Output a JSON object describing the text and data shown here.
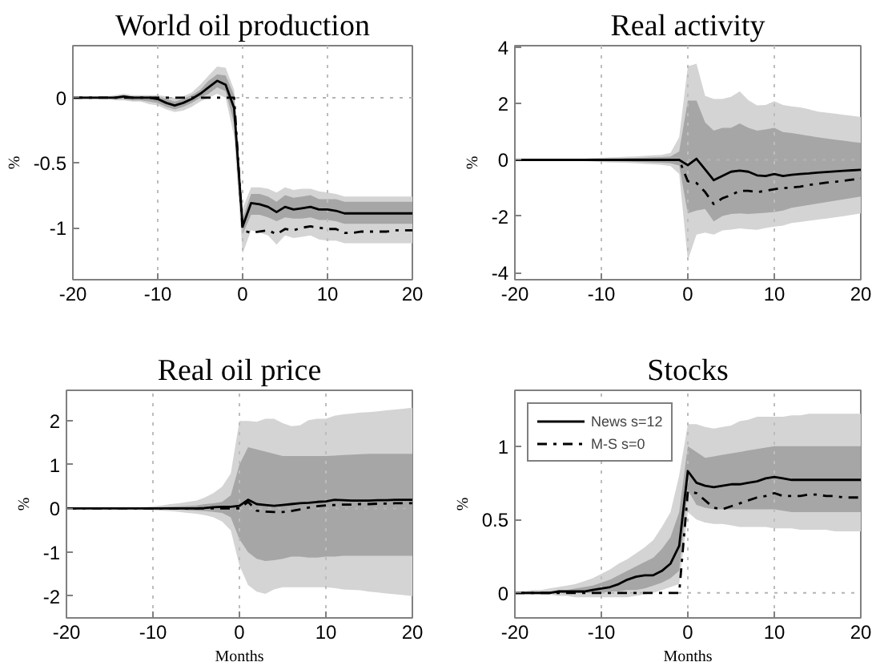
{
  "chart_data": [
    {
      "type": "line",
      "title": "World oil production",
      "ylabel": "%",
      "x": [
        -20,
        -19,
        -18,
        -17,
        -16,
        -15,
        -14,
        -13,
        -12,
        -11,
        -10,
        -9,
        -8,
        -7,
        -6,
        -5,
        -4,
        -3,
        -2,
        -1,
        0,
        1,
        2,
        3,
        4,
        5,
        6,
        7,
        8,
        9,
        10,
        11,
        12,
        13,
        14,
        15,
        16,
        17,
        18,
        19,
        20
      ],
      "xlim": [
        -20,
        20
      ],
      "ylim": [
        -1.4,
        0.4
      ],
      "xticks": [
        -20,
        -10,
        0,
        10,
        20
      ],
      "yticks": [
        -1,
        -0.5,
        0
      ],
      "grid": "x",
      "ref_lines": [
        {
          "axis": "y",
          "value": 0,
          "color": "#b4b4b4",
          "line_style": "dotted"
        }
      ],
      "series": [
        {
          "type": "area",
          "color": "#d4d4d4",
          "values": [
            null,
            null,
            null,
            null,
            null,
            null,
            null,
            null,
            null,
            null,
            null,
            null,
            null,
            null,
            null,
            null,
            null,
            null,
            null,
            null,
            null,
            null,
            null,
            null,
            null,
            null,
            null,
            null,
            null,
            null,
            null,
            null,
            null,
            null,
            null,
            null,
            null,
            null,
            null,
            null,
            null
          ],
          "lower": [
            -0.01,
            -0.01,
            -0.01,
            -0.01,
            -0.01,
            -0.02,
            -0.02,
            -0.03,
            -0.03,
            -0.05,
            -0.06,
            -0.09,
            -0.11,
            -0.1,
            -0.07,
            -0.03,
            0,
            0.03,
            0,
            -0.3,
            -1.2,
            -1.02,
            -1.04,
            -1.06,
            -1.13,
            -1.06,
            -1.08,
            -1.07,
            -1.06,
            -1.09,
            -1.1,
            -1.1,
            -1.12,
            -1.12,
            -1.12,
            -1.12,
            -1.12,
            -1.12,
            -1.12,
            -1.12,
            -1.12
          ],
          "upper": [
            0.01,
            0.01,
            0.01,
            0.01,
            0.01,
            0.02,
            0.03,
            0.02,
            0.02,
            0.02,
            0.02,
            0.01,
            0,
            0.01,
            0.04,
            0.1,
            0.17,
            0.24,
            0.23,
            0.06,
            -0.85,
            -0.69,
            -0.69,
            -0.7,
            -0.73,
            -0.69,
            -0.71,
            -0.7,
            -0.7,
            -0.72,
            -0.73,
            -0.74,
            -0.76,
            -0.76,
            -0.76,
            -0.76,
            -0.76,
            -0.76,
            -0.76,
            -0.76,
            -0.76
          ]
        },
        {
          "type": "area",
          "color": "#a6a6a6",
          "values": [
            null,
            null,
            null,
            null,
            null,
            null,
            null,
            null,
            null,
            null,
            null,
            null,
            null,
            null,
            null,
            null,
            null,
            null,
            null,
            null,
            null,
            null,
            null,
            null,
            null,
            null,
            null,
            null,
            null,
            null,
            null,
            null,
            null,
            null,
            null,
            null,
            null,
            null,
            null,
            null,
            null
          ],
          "lower": [
            0,
            0,
            0,
            0,
            0,
            -0.01,
            -0.01,
            -0.02,
            -0.02,
            -0.03,
            -0.04,
            -0.07,
            -0.09,
            -0.07,
            -0.04,
            0,
            0.03,
            0.08,
            0.05,
            -0.2,
            -1.05,
            -0.9,
            -0.9,
            -0.92,
            -0.95,
            -0.92,
            -0.93,
            -0.93,
            -0.92,
            -0.94,
            -0.94,
            -0.95,
            -0.97,
            -0.97,
            -0.97,
            -0.97,
            -0.97,
            -0.97,
            -0.97,
            -0.97,
            -0.97
          ],
          "upper": [
            0,
            0,
            0,
            0,
            0,
            0.01,
            0.02,
            0.01,
            0.01,
            0.01,
            0.01,
            -0.01,
            -0.03,
            -0.01,
            0.02,
            0.06,
            0.13,
            0.18,
            0.17,
            0.02,
            -0.93,
            -0.74,
            -0.74,
            -0.76,
            -0.8,
            -0.75,
            -0.77,
            -0.76,
            -0.75,
            -0.78,
            -0.78,
            -0.78,
            -0.8,
            -0.8,
            -0.8,
            -0.8,
            -0.8,
            -0.8,
            -0.8,
            -0.8,
            -0.8
          ]
        },
        {
          "type": "line",
          "color": "#000000",
          "line_style": "solid",
          "values": [
            0,
            0,
            0,
            0,
            0,
            0,
            0.01,
            0,
            0,
            0,
            -0.01,
            -0.04,
            -0.06,
            -0.04,
            -0.01,
            0.03,
            0.08,
            0.13,
            0.1,
            -0.08,
            -0.99,
            -0.81,
            -0.82,
            -0.84,
            -0.88,
            -0.84,
            -0.86,
            -0.85,
            -0.84,
            -0.86,
            -0.86,
            -0.87,
            -0.89,
            -0.89,
            -0.89,
            -0.89,
            -0.89,
            -0.89,
            -0.89,
            -0.89,
            -0.89
          ]
        },
        {
          "type": "line",
          "color": "#000000",
          "line_style": "dashdot",
          "values": [
            0,
            0,
            0,
            0,
            0,
            0,
            0,
            0,
            0,
            0,
            0,
            0,
            0,
            0,
            0,
            0,
            0,
            0,
            0,
            0,
            -1.02,
            -1.04,
            -1.03,
            -1.02,
            -1.05,
            -1.01,
            -1.02,
            -1,
            -0.99,
            -1,
            -1.01,
            -1.01,
            -1.04,
            -1.04,
            -1.03,
            -1.03,
            -1.03,
            -1.03,
            -1.02,
            -1.02,
            -1.02
          ]
        }
      ]
    },
    {
      "type": "line",
      "title": "Real activity",
      "ylabel": "%",
      "x": [
        -20,
        -19,
        -18,
        -17,
        -16,
        -15,
        -14,
        -13,
        -12,
        -11,
        -10,
        -9,
        -8,
        -7,
        -6,
        -5,
        -4,
        -3,
        -2,
        -1,
        0,
        1,
        2,
        3,
        4,
        5,
        6,
        7,
        8,
        9,
        10,
        11,
        12,
        13,
        14,
        15,
        16,
        17,
        18,
        19,
        20
      ],
      "xlim": [
        -20,
        20
      ],
      "ylim": [
        -4.25,
        4.05
      ],
      "xticks": [
        -20,
        -10,
        0,
        10,
        20
      ],
      "yticks": [
        -4,
        -2,
        0,
        2,
        4
      ],
      "grid": "x",
      "ref_lines": [
        {
          "axis": "y",
          "value": 0,
          "color": "#b4b4b4",
          "line_style": "dotted"
        }
      ],
      "series": [
        {
          "type": "area",
          "color": "#d4d4d4",
          "values": [
            null,
            null,
            null,
            null,
            null,
            null,
            null,
            null,
            null,
            null,
            null,
            null,
            null,
            null,
            null,
            null,
            null,
            null,
            null,
            null,
            null,
            null,
            null,
            null,
            null,
            null,
            null,
            null,
            null,
            null,
            null,
            null,
            null,
            null,
            null,
            null,
            null,
            null,
            null,
            null,
            null
          ],
          "lower": [
            -0.02,
            -0.02,
            -0.02,
            -0.02,
            -0.02,
            -0.02,
            -0.02,
            -0.02,
            -0.04,
            -0.06,
            -0.08,
            -0.09,
            -0.1,
            -0.11,
            -0.12,
            -0.14,
            -0.16,
            -0.18,
            -0.22,
            -0.5,
            -3.56,
            -2.65,
            -2.58,
            -2.65,
            -2.5,
            -2.47,
            -2.43,
            -2.46,
            -2.48,
            -2.42,
            -2.37,
            -2.33,
            -2.24,
            -2.2,
            -2.16,
            -2.12,
            -2.08,
            -2.04,
            -2,
            -1.95,
            -1.9
          ],
          "upper": [
            0.02,
            0.02,
            0.02,
            0.02,
            0.02,
            0.02,
            0.02,
            0.02,
            0.04,
            0.06,
            0.08,
            0.09,
            0.1,
            0.11,
            0.12,
            0.14,
            0.16,
            0.18,
            0.25,
            0.8,
            3.32,
            3.41,
            2.27,
            2.16,
            2.16,
            2.24,
            2.43,
            2.12,
            1.93,
            1.95,
            2.08,
            1.95,
            1.9,
            1.86,
            1.8,
            1.71,
            1.68,
            1.64,
            1.6,
            1.56,
            1.52
          ]
        },
        {
          "type": "area",
          "color": "#a6a6a6",
          "values": [
            null,
            null,
            null,
            null,
            null,
            null,
            null,
            null,
            null,
            null,
            null,
            null,
            null,
            null,
            null,
            null,
            null,
            null,
            null,
            null,
            null,
            null,
            null,
            null,
            null,
            null,
            null,
            null,
            null,
            null,
            null,
            null,
            null,
            null,
            null,
            null,
            null,
            null,
            null,
            null,
            null
          ],
          "lower": [
            0,
            0,
            0,
            0,
            0,
            0,
            0,
            0,
            -0.02,
            -0.03,
            -0.04,
            -0.05,
            -0.05,
            -0.06,
            -0.07,
            -0.08,
            -0.09,
            -0.1,
            -0.12,
            -0.2,
            -1.9,
            -1.8,
            -1.74,
            -2.18,
            -1.99,
            -1.92,
            -1.9,
            -1.92,
            -1.9,
            -1.88,
            -1.85,
            -1.8,
            -1.7,
            -1.65,
            -1.6,
            -1.55,
            -1.5,
            -1.45,
            -1.4,
            -1.35,
            -1.3
          ],
          "upper": [
            0,
            0,
            0,
            0,
            0,
            0,
            0,
            0,
            0.02,
            0.03,
            0.04,
            0.05,
            0.05,
            0.06,
            0.07,
            0.08,
            0.09,
            0.1,
            0.12,
            0.3,
            2.1,
            2.1,
            1.33,
            1.04,
            1.14,
            1.14,
            1.29,
            1.14,
            1.04,
            1.08,
            1.14,
            0.99,
            0.95,
            0.9,
            0.85,
            0.8,
            0.76,
            0.72,
            0.68,
            0.64,
            0.6
          ]
        },
        {
          "type": "line",
          "color": "#000000",
          "line_style": "solid",
          "values": [
            0,
            0,
            0,
            0,
            0,
            0,
            0,
            0,
            0,
            0,
            0,
            0,
            0,
            0,
            0,
            0,
            0,
            0,
            0,
            0,
            -0.19,
            0.04,
            -0.34,
            -0.72,
            -0.57,
            -0.42,
            -0.38,
            -0.42,
            -0.55,
            -0.57,
            -0.5,
            -0.57,
            -0.53,
            -0.5,
            -0.48,
            -0.45,
            -0.43,
            -0.41,
            -0.39,
            -0.37,
            -0.35
          ]
        },
        {
          "type": "line",
          "color": "#000000",
          "line_style": "dashdot",
          "values": [
            0,
            0,
            0,
            0,
            0,
            0,
            0,
            0,
            0,
            0,
            0,
            0,
            0,
            0,
            0,
            0,
            0,
            0,
            0,
            0,
            -0.76,
            -0.82,
            -1.14,
            -1.57,
            -1.36,
            -1.25,
            -1.1,
            -1.1,
            -1.14,
            -1.1,
            -1.04,
            -1,
            -0.98,
            -0.95,
            -0.89,
            -0.85,
            -0.81,
            -0.78,
            -0.74,
            -0.7,
            -0.66
          ]
        }
      ]
    },
    {
      "type": "line",
      "title": "Real oil price",
      "ylabel": "%",
      "xlabel": "Months",
      "x": [
        -20,
        -19,
        -18,
        -17,
        -16,
        -15,
        -14,
        -13,
        -12,
        -11,
        -10,
        -9,
        -8,
        -7,
        -6,
        -5,
        -4,
        -3,
        -2,
        -1,
        0,
        1,
        2,
        3,
        4,
        5,
        6,
        7,
        8,
        9,
        10,
        11,
        12,
        13,
        14,
        15,
        16,
        17,
        18,
        19,
        20
      ],
      "xlim": [
        -20,
        20
      ],
      "ylim": [
        -2.5,
        2.7
      ],
      "xticks": [
        -20,
        -10,
        0,
        10,
        20
      ],
      "yticks": [
        -2,
        -1,
        0,
        1,
        2
      ],
      "grid": "x",
      "ref_lines": [
        {
          "axis": "y",
          "value": 0,
          "color": "#b4b4b4",
          "line_style": "dotted"
        }
      ],
      "series": [
        {
          "type": "area",
          "color": "#d4d4d4",
          "values": [
            null,
            null,
            null,
            null,
            null,
            null,
            null,
            null,
            null,
            null,
            null,
            null,
            null,
            null,
            null,
            null,
            null,
            null,
            null,
            null,
            null,
            null,
            null,
            null,
            null,
            null,
            null,
            null,
            null,
            null,
            null,
            null,
            null,
            null,
            null,
            null,
            null,
            null,
            null,
            null,
            null
          ],
          "lower": [
            -0.01,
            -0.01,
            -0.01,
            -0.01,
            -0.01,
            -0.01,
            -0.01,
            -0.01,
            -0.02,
            -0.03,
            -0.04,
            -0.05,
            -0.06,
            -0.08,
            -0.1,
            -0.12,
            -0.15,
            -0.2,
            -0.3,
            -0.5,
            -1.3,
            -1.75,
            -1.9,
            -1.95,
            -1.85,
            -1.8,
            -1.8,
            -1.8,
            -1.8,
            -1.8,
            -1.8,
            -1.82,
            -1.85,
            -1.86,
            -1.87,
            -1.9,
            -1.92,
            -1.94,
            -1.96,
            -1.98,
            -2
          ],
          "upper": [
            0.01,
            0.01,
            0.01,
            0.01,
            0.01,
            0.01,
            0.01,
            0.01,
            0.02,
            0.03,
            0.05,
            0.07,
            0.1,
            0.12,
            0.15,
            0.18,
            0.25,
            0.35,
            0.5,
            0.8,
            2,
            2,
            1.98,
            2.05,
            2.05,
            1.95,
            1.88,
            1.9,
            2.02,
            2.05,
            2.05,
            2.12,
            2.15,
            2.17,
            2.19,
            2.2,
            2.22,
            2.24,
            2.26,
            2.28,
            2.3
          ]
        },
        {
          "type": "area",
          "color": "#a6a6a6",
          "values": [
            null,
            null,
            null,
            null,
            null,
            null,
            null,
            null,
            null,
            null,
            null,
            null,
            null,
            null,
            null,
            null,
            null,
            null,
            null,
            null,
            null,
            null,
            null,
            null,
            null,
            null,
            null,
            null,
            null,
            null,
            null,
            null,
            null,
            null,
            null,
            null,
            null,
            null,
            null,
            null,
            null
          ],
          "lower": [
            0,
            0,
            0,
            0,
            0,
            0,
            0,
            0,
            -0.01,
            -0.01,
            -0.02,
            -0.02,
            -0.03,
            -0.03,
            -0.04,
            -0.05,
            -0.06,
            -0.08,
            -0.1,
            -0.2,
            -0.7,
            -1,
            -1.15,
            -1.2,
            -1.18,
            -1.15,
            -1.1,
            -1.1,
            -1.12,
            -1.12,
            -1.1,
            -1.1,
            -1.08,
            -1.08,
            -1.08,
            -1.08,
            -1.08,
            -1.08,
            -1.08,
            -1.08,
            -1.08
          ],
          "upper": [
            0,
            0,
            0,
            0,
            0,
            0,
            0,
            0,
            0.01,
            0.01,
            0.02,
            0.03,
            0.04,
            0.05,
            0.06,
            0.07,
            0.1,
            0.12,
            0.15,
            0.3,
            1,
            1.4,
            1.35,
            1.3,
            1.25,
            1.2,
            1.2,
            1.2,
            1.2,
            1.2,
            1.2,
            1.21,
            1.22,
            1.23,
            1.24,
            1.25,
            1.25,
            1.25,
            1.25,
            1.25,
            1.25
          ]
        },
        {
          "type": "line",
          "color": "#000000",
          "line_style": "solid",
          "values": [
            0,
            0,
            0,
            0,
            0,
            0,
            0,
            0,
            0,
            0,
            0,
            0,
            0,
            0,
            0,
            0,
            0.01,
            0.03,
            0.04,
            0.04,
            0.06,
            0.2,
            0.1,
            0.08,
            0.06,
            0.08,
            0.1,
            0.12,
            0.13,
            0.15,
            0.16,
            0.2,
            0.19,
            0.18,
            0.18,
            0.18,
            0.19,
            0.19,
            0.2,
            0.2,
            0.2
          ]
        },
        {
          "type": "line",
          "color": "#000000",
          "line_style": "dashdot",
          "values": [
            0,
            0,
            0,
            0,
            0,
            0,
            0,
            0,
            0,
            0,
            0,
            0,
            0,
            0,
            0,
            0,
            0,
            0,
            0,
            0,
            0,
            0.15,
            -0.05,
            -0.07,
            -0.08,
            -0.08,
            -0.06,
            -0.02,
            0.02,
            0.05,
            0.07,
            0.08,
            0.09,
            0.09,
            0.1,
            0.1,
            0.11,
            0.11,
            0.12,
            0.12,
            0.12
          ]
        }
      ]
    },
    {
      "type": "line",
      "title": "Stocks",
      "ylabel": "%",
      "xlabel": "Months",
      "x": [
        -20,
        -19,
        -18,
        -17,
        -16,
        -15,
        -14,
        -13,
        -12,
        -11,
        -10,
        -9,
        -8,
        -7,
        -6,
        -5,
        -4,
        -3,
        -2,
        -1,
        0,
        1,
        2,
        3,
        4,
        5,
        6,
        7,
        8,
        9,
        10,
        11,
        12,
        13,
        14,
        15,
        16,
        17,
        18,
        19,
        20
      ],
      "xlim": [
        -20,
        20
      ],
      "ylim": [
        -0.17,
        1.38
      ],
      "xticks": [
        -20,
        -10,
        0,
        10,
        20
      ],
      "yticks": [
        0,
        0.5,
        1
      ],
      "grid": "x",
      "legend": "top left",
      "ref_lines": [
        {
          "axis": "y",
          "value": 0,
          "color": "#b4b4b4",
          "line_style": "dotted"
        }
      ],
      "series": [
        {
          "type": "area",
          "color": "#d4d4d4",
          "values": [
            null,
            null,
            null,
            null,
            null,
            null,
            null,
            null,
            null,
            null,
            null,
            null,
            null,
            null,
            null,
            null,
            null,
            null,
            null,
            null,
            null,
            null,
            null,
            null,
            null,
            null,
            null,
            null,
            null,
            null,
            null,
            null,
            null,
            null,
            null,
            null,
            null,
            null,
            null,
            null,
            null
          ],
          "lower": [
            -0.01,
            -0.01,
            -0.01,
            -0.01,
            -0.01,
            -0.02,
            -0.02,
            -0.03,
            -0.03,
            -0.03,
            -0.03,
            -0.03,
            -0.03,
            -0.03,
            -0.02,
            -0.01,
            0,
            0.02,
            0.04,
            0.06,
            0.55,
            0.5,
            0.48,
            0.47,
            0.47,
            0.46,
            0.45,
            0.45,
            0.45,
            0.45,
            0.44,
            0.44,
            0.44,
            0.43,
            0.43,
            0.43,
            0.43,
            0.42,
            0.42,
            0.42,
            0.42
          ],
          "upper": [
            0.01,
            0.01,
            0.02,
            0.02,
            0.03,
            0.04,
            0.05,
            0.06,
            0.08,
            0.1,
            0.13,
            0.16,
            0.2,
            0.23,
            0.27,
            0.31,
            0.36,
            0.45,
            0.55,
            0.8,
            1.15,
            1.15,
            1.13,
            1.12,
            1.13,
            1.14,
            1.17,
            1.18,
            1.2,
            1.2,
            1.2,
            1.2,
            1.21,
            1.21,
            1.22,
            1.22,
            1.22,
            1.22,
            1.22,
            1.22,
            1.22
          ]
        },
        {
          "type": "area",
          "color": "#a6a6a6",
          "values": [
            null,
            null,
            null,
            null,
            null,
            null,
            null,
            null,
            null,
            null,
            null,
            null,
            null,
            null,
            null,
            null,
            null,
            null,
            null,
            null,
            null,
            null,
            null,
            null,
            null,
            null,
            null,
            null,
            null,
            null,
            null,
            null,
            null,
            null,
            null,
            null,
            null,
            null,
            null,
            null,
            null
          ],
          "lower": [
            0,
            0,
            0,
            0,
            0,
            0,
            0,
            0,
            0,
            0,
            0,
            0.01,
            0.01,
            0.02,
            0.02,
            0.03,
            0.05,
            0.07,
            0.1,
            0.15,
            0.7,
            0.6,
            0.58,
            0.57,
            0.57,
            0.57,
            0.57,
            0.57,
            0.57,
            0.57,
            0.57,
            0.56,
            0.55,
            0.55,
            0.55,
            0.55,
            0.55,
            0.55,
            0.55,
            0.55,
            0.55
          ],
          "upper": [
            0,
            0.01,
            0.01,
            0.01,
            0.01,
            0.02,
            0.02,
            0.03,
            0.04,
            0.05,
            0.07,
            0.09,
            0.12,
            0.15,
            0.18,
            0.21,
            0.24,
            0.3,
            0.38,
            0.55,
            1,
            0.96,
            0.92,
            0.93,
            0.94,
            0.95,
            0.96,
            0.97,
            0.98,
            0.99,
            1,
            1,
            1,
            1,
            1,
            1,
            1,
            1,
            1,
            1,
            1
          ]
        },
        {
          "type": "line",
          "name": "News s=12",
          "color": "#000000",
          "line_style": "solid",
          "values": [
            0,
            0,
            0,
            0,
            0,
            0.01,
            0.01,
            0.01,
            0.01,
            0.02,
            0.03,
            0.04,
            0.06,
            0.09,
            0.11,
            0.12,
            0.12,
            0.15,
            0.2,
            0.32,
            0.83,
            0.75,
            0.73,
            0.72,
            0.73,
            0.74,
            0.74,
            0.75,
            0.76,
            0.78,
            0.79,
            0.78,
            0.77,
            0.77,
            0.77,
            0.77,
            0.77,
            0.77,
            0.77,
            0.77,
            0.77
          ]
        },
        {
          "type": "line",
          "name": "M-S s=0",
          "color": "#000000",
          "line_style": "dashdot",
          "values": [
            0,
            0,
            0,
            0,
            0,
            0,
            0,
            0,
            0,
            0,
            0,
            0,
            0,
            0,
            0,
            0,
            0,
            0,
            0,
            0,
            0.69,
            0.68,
            0.63,
            0.58,
            0.57,
            0.59,
            0.61,
            0.63,
            0.65,
            0.66,
            0.68,
            0.66,
            0.66,
            0.66,
            0.67,
            0.67,
            0.66,
            0.66,
            0.65,
            0.65,
            0.65
          ]
        }
      ]
    }
  ]
}
